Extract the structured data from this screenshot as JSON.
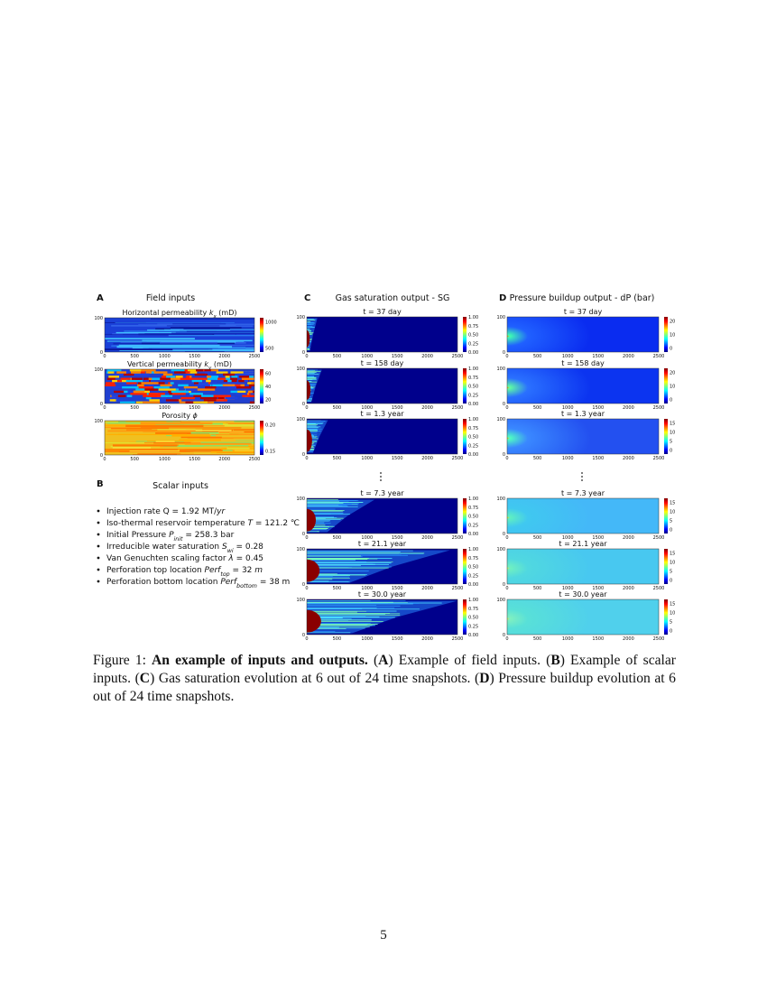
{
  "figure": {
    "panels": [
      {
        "letter": "A",
        "title": "Field inputs",
        "plots": [
          {
            "title": [
              {
                "text": "Horizontal permeability "
              },
              {
                "text": "k",
                "italic": true,
                "sub": "x"
              },
              {
                "text": " (mD)"
              }
            ],
            "yticks": [
              "0",
              "100"
            ],
            "xticks": [
              "0",
              "500",
              "1000",
              "1500",
              "2000",
              "2500"
            ],
            "colorbar_ticks": [
              "500",
              "1000"
            ]
          },
          {
            "title": [
              {
                "text": "Vertical permeability "
              },
              {
                "text": "k",
                "italic": true,
                "sub": "y"
              },
              {
                "text": " (mD)"
              }
            ],
            "yticks": [
              "0",
              "100"
            ],
            "xticks": [
              "0",
              "500",
              "1000",
              "1500",
              "2000",
              "2500"
            ],
            "colorbar_ticks": [
              "20",
              "40",
              "60"
            ]
          },
          {
            "title": [
              {
                "text": "Porosity "
              },
              {
                "text": "ϕ",
                "italic": true
              }
            ],
            "yticks": [
              "0",
              "100"
            ],
            "xticks": [
              "0",
              "500",
              "1000",
              "1500",
              "2000",
              "2500"
            ],
            "colorbar_ticks": [
              "0.15",
              "0.20"
            ]
          }
        ]
      },
      {
        "letter": "B",
        "title": "Scalar inputs",
        "items": [
          [
            {
              "text": "Injection rate Q = 1.92 MT/"
            },
            {
              "text": "yr",
              "italic": true
            }
          ],
          [
            {
              "text": "Iso-thermal reservoir temperature "
            },
            {
              "text": "T",
              "italic": true
            },
            {
              "text": " = 121.2 ℃"
            }
          ],
          [
            {
              "text": "Initial Pressure "
            },
            {
              "text": "P",
              "italic": true,
              "sub": "init"
            },
            {
              "text": " = 258.3 bar"
            }
          ],
          [
            {
              "text": "Irreducible water saturation "
            },
            {
              "text": "S",
              "italic": true,
              "sub": "wi"
            },
            {
              "text": " = 0.28"
            }
          ],
          [
            {
              "text": "Van Genuchten scaling factor "
            },
            {
              "text": "λ",
              "italic": true
            },
            {
              "text": " = 0.45"
            }
          ],
          [
            {
              "text": "Perforation top location "
            },
            {
              "text": "Perf",
              "italic": true,
              "sub": "top"
            },
            {
              "text": " = 32 "
            },
            {
              "text": "m",
              "italic": true
            }
          ],
          [
            {
              "text": "Perforation bottom location "
            },
            {
              "text": "Perf",
              "italic": true,
              "sub": "bottom"
            },
            {
              "text": " = 38 m"
            }
          ]
        ]
      },
      {
        "letter": "C",
        "title": "Gas saturation output  - SG",
        "plots": [
          {
            "title": [
              {
                "text": "t = 37 day"
              }
            ],
            "yticks": [
              "0",
              "100"
            ],
            "xticks": [
              "0",
              "500",
              "1000",
              "1500",
              "2000",
              "2500"
            ],
            "colorbar_ticks": [
              "0.00",
              "0.25",
              "0.50",
              "0.75",
              "1.00"
            ]
          },
          {
            "title": [
              {
                "text": "t = 158 day"
              }
            ],
            "yticks": [
              "0",
              "100"
            ],
            "xticks": [
              "0",
              "500",
              "1000",
              "1500",
              "2000",
              "2500"
            ],
            "colorbar_ticks": [
              "0.00",
              "0.25",
              "0.50",
              "0.75",
              "1.00"
            ]
          },
          {
            "title": [
              {
                "text": "t = 1.3 year"
              }
            ],
            "yticks": [
              "0",
              "100"
            ],
            "xticks": [
              "0",
              "500",
              "1000",
              "1500",
              "2000",
              "2500"
            ],
            "colorbar_ticks": [
              "0.00",
              "0.25",
              "0.50",
              "0.75",
              "1.00"
            ]
          },
          {
            "title": [
              {
                "text": "t = 7.3 year"
              }
            ],
            "yticks": [
              "0",
              "100"
            ],
            "xticks": [
              "0",
              "500",
              "1000",
              "1500",
              "2000",
              "2500"
            ],
            "colorbar_ticks": [
              "0.00",
              "0.25",
              "0.50",
              "0.75",
              "1.00"
            ]
          },
          {
            "title": [
              {
                "text": "t = 21.1 year"
              }
            ],
            "yticks": [
              "0",
              "100"
            ],
            "xticks": [
              "0",
              "500",
              "1000",
              "1500",
              "2000",
              "2500"
            ],
            "colorbar_ticks": [
              "0.00",
              "0.25",
              "0.50",
              "0.75",
              "1.00"
            ]
          },
          {
            "title": [
              {
                "text": "t = 30.0 year"
              }
            ],
            "yticks": [
              "0",
              "100"
            ],
            "xticks": [
              "0",
              "500",
              "1000",
              "1500",
              "2000",
              "2500"
            ],
            "colorbar_ticks": [
              "0.00",
              "0.25",
              "0.50",
              "0.75",
              "1.00"
            ]
          }
        ]
      },
      {
        "letter": "D",
        "title": "Pressure buildup output  - dP (bar)",
        "plots": [
          {
            "title": [
              {
                "text": "t = 37 day"
              }
            ],
            "yticks": [
              "0",
              "100"
            ],
            "xticks": [
              "0",
              "500",
              "1000",
              "1500",
              "2000",
              "2500"
            ],
            "colorbar_ticks": [
              "0",
              "10",
              "20"
            ]
          },
          {
            "title": [
              {
                "text": "t = 158 day"
              }
            ],
            "yticks": [
              "0",
              "100"
            ],
            "xticks": [
              "0",
              "500",
              "1000",
              "1500",
              "2000",
              "2500"
            ],
            "colorbar_ticks": [
              "0",
              "10",
              "20"
            ]
          },
          {
            "title": [
              {
                "text": "t = 1.3 year"
              }
            ],
            "yticks": [
              "0",
              "100"
            ],
            "xticks": [
              "0",
              "500",
              "1000",
              "1500",
              "2000",
              "2500"
            ],
            "colorbar_ticks": [
              "0",
              "5",
              "10",
              "15"
            ]
          },
          {
            "title": [
              {
                "text": "t = 7.3 year"
              }
            ],
            "yticks": [
              "0",
              "100"
            ],
            "xticks": [
              "0",
              "500",
              "1000",
              "1500",
              "2000",
              "2500"
            ],
            "colorbar_ticks": [
              "0",
              "5",
              "10",
              "15"
            ]
          },
          {
            "title": [
              {
                "text": "t = 21.1 year"
              }
            ],
            "yticks": [
              "0",
              "100"
            ],
            "xticks": [
              "0",
              "500",
              "1000",
              "1500",
              "2000",
              "2500"
            ],
            "colorbar_ticks": [
              "0",
              "5",
              "10",
              "15"
            ]
          },
          {
            "title": [
              {
                "text": "t = 30.0 year"
              }
            ],
            "yticks": [
              "0",
              "100"
            ],
            "xticks": [
              "0",
              "500",
              "1000",
              "1500",
              "2000",
              "2500"
            ],
            "colorbar_ticks": [
              "0",
              "5",
              "10",
              "15"
            ]
          }
        ]
      }
    ],
    "caption": [
      {
        "text": "Figure 1: "
      },
      {
        "text": "An example of inputs and outputs.",
        "bold": true
      },
      {
        "text": " ("
      },
      {
        "text": "A",
        "bold": true
      },
      {
        "text": ") Example of field inputs. ("
      },
      {
        "text": "B",
        "bold": true
      },
      {
        "text": ") Example of scalar inputs. ("
      },
      {
        "text": "C",
        "bold": true
      },
      {
        "text": ") Gas saturation evolution at 6 out of 24 time snapshots. ("
      },
      {
        "text": "D",
        "bold": true
      },
      {
        "text": ") Pressure buildup evolution at 6 out of 24 time snapshots."
      }
    ]
  },
  "page_number": "5"
}
